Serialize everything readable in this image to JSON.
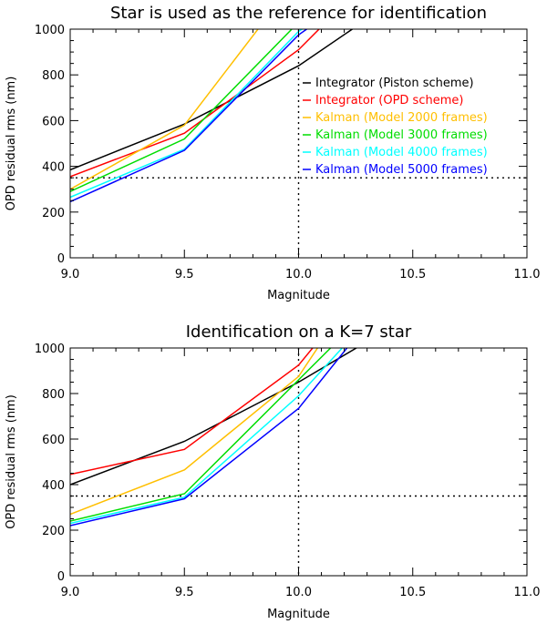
{
  "chart_data": [
    {
      "type": "line",
      "title": "Star is used as the reference for identification",
      "xlabel": "Magnitude",
      "ylabel": "OPD residual rms (nm)",
      "xlim": [
        9.0,
        11.0
      ],
      "ylim": [
        0,
        1000
      ],
      "xticks": [
        9.0,
        9.5,
        10.0,
        10.5,
        11.0
      ],
      "xtick_labels": [
        "9.0",
        "9.5",
        "10.0",
        "10.5",
        "11.0"
      ],
      "yticks": [
        0,
        200,
        400,
        600,
        800,
        1000
      ],
      "ytick_labels": [
        "0",
        "200",
        "400",
        "600",
        "800",
        "1000"
      ],
      "hline": 350,
      "vline": 10.0,
      "legend": "top-right",
      "series": [
        {
          "name": "Integrator (Piston scheme)",
          "color": "#000000",
          "x": [
            9.0,
            9.5,
            10.0,
            10.25
          ],
          "y": [
            385,
            585,
            840,
            1010
          ]
        },
        {
          "name": "Integrator (OPD scheme)",
          "color": "#ff0000",
          "x": [
            9.0,
            9.5,
            10.0,
            10.1
          ],
          "y": [
            355,
            545,
            910,
            1010
          ]
        },
        {
          "name": "Kalman (Model 2000 frames)",
          "color": "#ffbf00",
          "x": [
            9.0,
            9.5,
            9.83
          ],
          "y": [
            300,
            580,
            1010
          ]
        },
        {
          "name": "Kalman (Model 3000 frames)",
          "color": "#00dd00",
          "x": [
            9.0,
            9.5,
            9.98
          ],
          "y": [
            290,
            520,
            1010
          ]
        },
        {
          "name": "Kalman (Model 4000 frames)",
          "color": "#00ffff",
          "x": [
            9.0,
            9.5,
            10.0,
            10.03
          ],
          "y": [
            265,
            475,
            990,
            1010
          ]
        },
        {
          "name": "Kalman (Model 5000 frames)",
          "color": "#0000ff",
          "x": [
            9.0,
            9.5,
            10.0,
            10.05
          ],
          "y": [
            245,
            470,
            975,
            1010
          ]
        }
      ]
    },
    {
      "type": "line",
      "title": "Identification on a K=7 star",
      "xlabel": "Magnitude",
      "ylabel": "OPD residual rms (nm)",
      "xlim": [
        9.0,
        11.0
      ],
      "ylim": [
        0,
        1000
      ],
      "xticks": [
        9.0,
        9.5,
        10.0,
        10.5,
        11.0
      ],
      "xtick_labels": [
        "9.0",
        "9.5",
        "10.0",
        "10.5",
        "11.0"
      ],
      "yticks": [
        0,
        200,
        400,
        600,
        800,
        1000
      ],
      "ytick_labels": [
        "0",
        "200",
        "400",
        "600",
        "800",
        "1000"
      ],
      "hline": 350,
      "vline": 10.0,
      "series": [
        {
          "name": "Integrator (Piston scheme)",
          "color": "#000000",
          "x": [
            9.0,
            9.5,
            10.0,
            10.27
          ],
          "y": [
            400,
            590,
            850,
            1010
          ]
        },
        {
          "name": "Integrator (OPD scheme)",
          "color": "#ff0000",
          "x": [
            9.0,
            9.5,
            10.0,
            10.07
          ],
          "y": [
            445,
            555,
            925,
            1010
          ]
        },
        {
          "name": "Kalman (Model 2000 frames)",
          "color": "#ffbf00",
          "x": [
            9.0,
            9.5,
            10.0,
            10.09
          ],
          "y": [
            270,
            465,
            875,
            1010
          ]
        },
        {
          "name": "Kalman (Model 3000 frames)",
          "color": "#00dd00",
          "x": [
            9.0,
            9.5,
            10.0,
            10.15
          ],
          "y": [
            240,
            360,
            860,
            1010
          ]
        },
        {
          "name": "Kalman (Model 4000 frames)",
          "color": "#00ffff",
          "x": [
            9.0,
            9.5,
            10.0,
            10.2
          ],
          "y": [
            230,
            345,
            790,
            1010
          ]
        },
        {
          "name": "Kalman (Model 5000 frames)",
          "color": "#0000ff",
          "x": [
            9.0,
            9.5,
            10.0,
            10.22
          ],
          "y": [
            220,
            338,
            735,
            1010
          ]
        }
      ]
    }
  ]
}
